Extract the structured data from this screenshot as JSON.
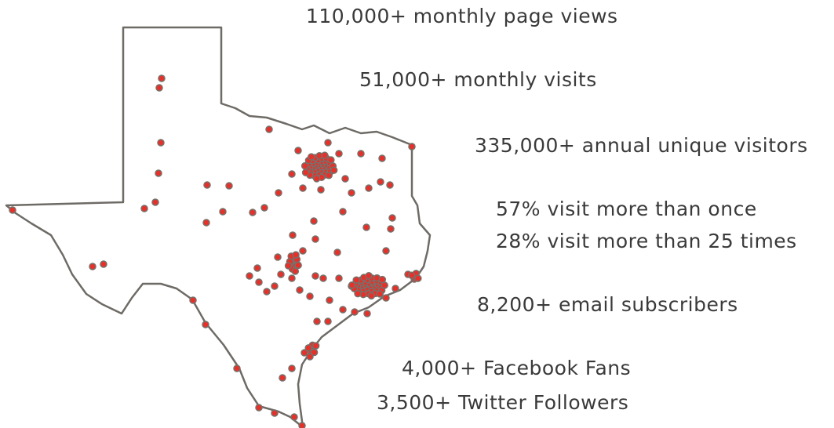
{
  "stats": [
    "110,000+ monthly page views",
    "51,000+ monthly visits",
    "335,000+ annual unique visitors",
    "57% visit more than once",
    "28% visit more than 25 times",
    "8,200+ email subscribers",
    "4,000+ Facebook Fans",
    "3,500+ Twitter Followers"
  ]
}
